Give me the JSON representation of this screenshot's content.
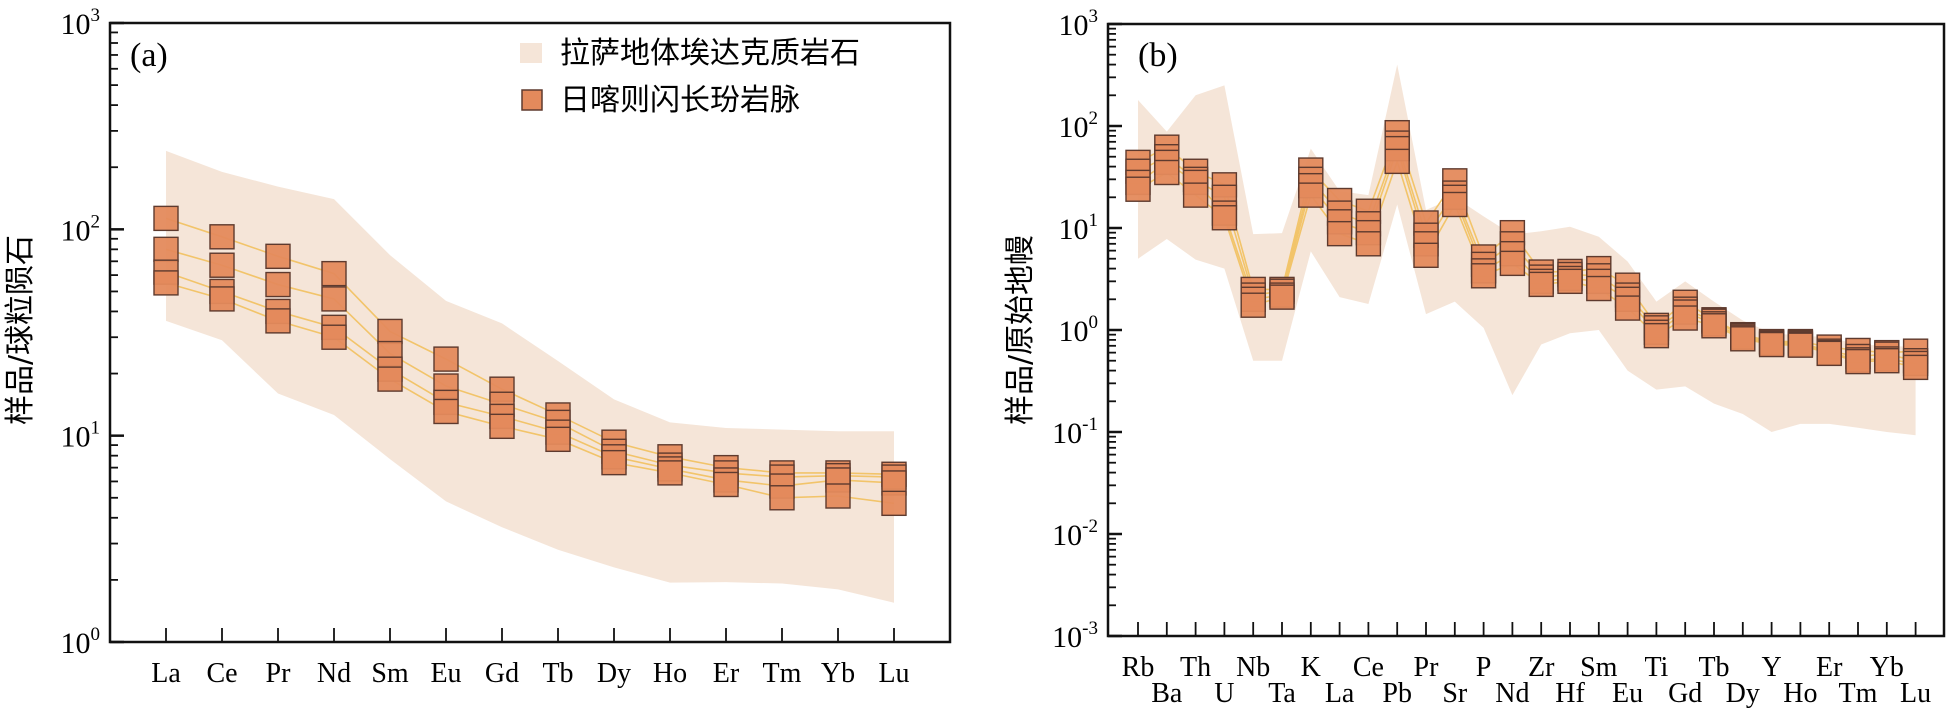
{
  "colors": {
    "envelope": "#F5E5D8",
    "marker_fill": "#E48A5C",
    "marker_stroke": "#5E3A2E",
    "line": "#F2C46A",
    "axis": "#111111"
  },
  "legend": {
    "envelope_label": "拉萨地体埃达克质岩石",
    "sample_label": "日喀则闪长玢岩脉"
  },
  "chart_data": [
    {
      "id": "a",
      "type": "line",
      "panel_label": "(a)",
      "title": "",
      "xlabel": "",
      "ylabel": "样品/球粒陨石",
      "yscale": "log",
      "ylim": [
        1,
        1000
      ],
      "yticks": [
        {
          "base": "10",
          "exp": "0"
        },
        {
          "base": "10",
          "exp": "1"
        },
        {
          "base": "10",
          "exp": "2"
        },
        {
          "base": "10",
          "exp": "3"
        }
      ],
      "categories": [
        "La",
        "Ce",
        "Pr",
        "Nd",
        "Sm",
        "Eu",
        "Gd",
        "Tb",
        "Dy",
        "Ho",
        "Er",
        "Tm",
        "Yb",
        "Lu"
      ],
      "legend_position": "top-right",
      "envelope": {
        "name": "拉萨地体埃达克质岩石",
        "upper": [
          240,
          190,
          161,
          140,
          75,
          45,
          35,
          23,
          15,
          11.6,
          10.9,
          10.7,
          10.5,
          10.5
        ],
        "lower": [
          36,
          29,
          16,
          12.6,
          7.7,
          4.8,
          3.6,
          2.8,
          2.3,
          1.94,
          1.95,
          1.92,
          1.8,
          1.55
        ]
      },
      "series": [
        {
          "name": "日喀则闪长玢岩脉 1",
          "values": [
            113,
            92,
            74,
            61,
            32,
            23.5,
            16.8,
            12.6,
            9.3,
            7.9,
            7.0,
            6.6,
            6.6,
            6.5
          ]
        },
        {
          "name": "日喀则闪长玢岩脉 2",
          "values": [
            80,
            67,
            54,
            46,
            25,
            17.4,
            14.2,
            11.6,
            8.4,
            7.2,
            6.6,
            6.3,
            6.4,
            6.3
          ]
        },
        {
          "name": "日喀则闪长玢岩脉 3",
          "values": [
            62,
            50,
            40,
            33.5,
            21,
            14.5,
            12.4,
            10.4,
            7.9,
            6.9,
            6.1,
            5.7,
            6.1,
            5.9
          ]
        },
        {
          "name": "日喀则闪长玢岩脉 4",
          "values": [
            55,
            46,
            36,
            30,
            18.8,
            13.1,
            11.1,
            9.6,
            7.4,
            6.6,
            5.8,
            5.0,
            5.1,
            4.7
          ]
        }
      ]
    },
    {
      "id": "b",
      "type": "line",
      "panel_label": "(b)",
      "title": "",
      "xlabel": "",
      "ylabel": "样品/原始地幔",
      "yscale": "log",
      "ylim": [
        0.001,
        1000
      ],
      "yticks": [
        {
          "base": "10",
          "exp": "-3"
        },
        {
          "base": "10",
          "exp": "-2"
        },
        {
          "base": "10",
          "exp": "-1"
        },
        {
          "base": "10",
          "exp": "0"
        },
        {
          "base": "10",
          "exp": "1"
        },
        {
          "base": "10",
          "exp": "2"
        },
        {
          "base": "10",
          "exp": "3"
        }
      ],
      "categories": [
        "Rb",
        "Ba",
        "Th",
        "U",
        "Nb",
        "Ta",
        "K",
        "La",
        "Ce",
        "Pb",
        "Pr",
        "Sr",
        "P",
        "Nd",
        "Zr",
        "Hf",
        "Sm",
        "Eu",
        "Ti",
        "Gd",
        "Tb",
        "Dy",
        "Y",
        "Ho",
        "Er",
        "Tm",
        "Yb",
        "Lu"
      ],
      "envelope": {
        "name": "拉萨地体埃达克质岩石",
        "upper": [
          180,
          88,
          200,
          250,
          8.7,
          8.9,
          60,
          23,
          21,
          400,
          15,
          20,
          13,
          8.6,
          9.3,
          10.3,
          8.2,
          4.7,
          1.9,
          3.0,
          1.9,
          1.24,
          0.93,
          0.88,
          0.85,
          0.72,
          0.7,
          0.68
        ],
        "lower": [
          5,
          7.8,
          4.9,
          4.0,
          0.5,
          0.5,
          5.9,
          2.1,
          1.8,
          17,
          1.43,
          1.9,
          1.05,
          0.23,
          0.72,
          0.93,
          1.0,
          0.4,
          0.26,
          0.28,
          0.19,
          0.15,
          0.1,
          0.12,
          0.12,
          0.11,
          0.1,
          0.093
        ]
      },
      "series": [
        {
          "name": "日喀则闪长玢岩脉 1",
          "values": [
            44,
            62,
            36,
            26.5,
            2.5,
            2.5,
            37,
            18.6,
            14.6,
            86,
            11.2,
            29,
            5.2,
            9.0,
            3.7,
            3.75,
            4.0,
            2.75,
            1.11,
            1.87,
            1.26,
            0.9,
            0.77,
            0.77,
            0.68,
            0.63,
            0.6,
            0.62
          ]
        },
        {
          "name": "日喀则闪长玢岩脉 2",
          "values": [
            36,
            50,
            30,
            20,
            2.2,
            2.4,
            30,
            14,
            11,
            68,
            8.5,
            22,
            4.4,
            7.0,
            3.3,
            3.5,
            3.4,
            2.2,
            1.05,
            1.6,
            1.22,
            0.88,
            0.76,
            0.75,
            0.62,
            0.55,
            0.58,
            0.5
          ]
        },
        {
          "name": "日喀则闪长玢岩脉 3",
          "values": [
            28,
            44,
            28,
            14,
            2.0,
            2.2,
            26,
            11.5,
            9,
            60,
            7,
            20,
            3.8,
            5.6,
            3.0,
            3.2,
            3.0,
            2.0,
            0.95,
            1.5,
            1.15,
            0.85,
            0.74,
            0.73,
            0.6,
            0.51,
            0.52,
            0.47
          ]
        },
        {
          "name": "日喀则闪长玢岩脉 4",
          "values": [
            24,
            35,
            21,
            12.6,
            1.75,
            2.1,
            21,
            8.8,
            7,
            45,
            5.4,
            17,
            3.4,
            4.5,
            2.8,
            3.0,
            2.55,
            1.64,
            0.88,
            1.31,
            1.1,
            0.82,
            0.72,
            0.71,
            0.59,
            0.49,
            0.5,
            0.43
          ]
        }
      ]
    }
  ]
}
